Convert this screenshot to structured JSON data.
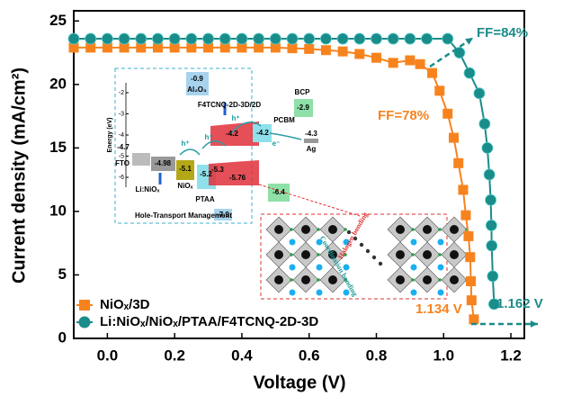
{
  "chart_data": {
    "type": "line",
    "x_label": "Voltage (V)",
    "y_label": "Current density (mA/cm²)",
    "xlim": [
      -0.1,
      1.24
    ],
    "ylim": [
      0,
      25.8
    ],
    "xticks": [
      {
        "value": 0,
        "label": "0.0"
      },
      0.2,
      0.4,
      0.6,
      0.8,
      {
        "value": 1,
        "label": "1.0"
      },
      1.2
    ],
    "yticks": [
      0,
      5,
      10,
      15,
      20,
      25
    ],
    "legend": "lower left",
    "series": [
      {
        "name": "NiOₓ/3D",
        "color": "#f7831e",
        "marker": "square",
        "x": [
          -0.1,
          -0.05,
          0,
          0.05,
          0.1,
          0.15,
          0.2,
          0.25,
          0.3,
          0.35,
          0.4,
          0.45,
          0.5,
          0.55,
          0.6,
          0.65,
          0.7,
          0.75,
          0.8,
          0.85,
          0.9,
          0.93,
          0.966,
          0.988,
          1.012,
          1.03,
          1.044,
          1.058,
          1.066,
          1.074,
          1.079,
          1.081,
          1.083,
          1.09
        ],
        "values": [
          22.9,
          22.9,
          22.9,
          22.9,
          22.9,
          22.9,
          22.9,
          22.9,
          22.9,
          22.9,
          22.9,
          22.9,
          22.9,
          22.85,
          22.8,
          22.7,
          22.6,
          22.4,
          22.1,
          21.7,
          21.9,
          21.6,
          20.9,
          19.5,
          17.7,
          15.8,
          13.8,
          11.7,
          9.7,
          8.05,
          6.4,
          4.5,
          3.0,
          1.5
        ]
      },
      {
        "name": "Li:NiOₓ/NiOₓ/PTAA/F4TCNQ-2D-3D",
        "color": "#1a8c8a",
        "marker": "circle",
        "x": [
          -0.1,
          -0.05,
          0,
          0.05,
          0.1,
          0.15,
          0.2,
          0.25,
          0.3,
          0.35,
          0.4,
          0.45,
          0.5,
          0.55,
          0.6,
          0.65,
          0.7,
          0.75,
          0.8,
          0.85,
          0.9,
          0.95,
          1.012,
          1.047,
          1.077,
          1.106,
          1.122,
          1.13,
          1.136,
          1.14,
          1.142,
          1.143,
          1.146,
          1.15
        ],
        "values": [
          23.6,
          23.6,
          23.6,
          23.6,
          23.6,
          23.6,
          23.6,
          23.6,
          23.6,
          23.6,
          23.6,
          23.6,
          23.6,
          23.6,
          23.6,
          23.6,
          23.6,
          23.6,
          23.6,
          23.6,
          23.6,
          23.6,
          23.6,
          22.5,
          20.9,
          19.3,
          16.9,
          15.0,
          12.9,
          10.9,
          8.9,
          7.3,
          4.9,
          2.7
        ]
      }
    ],
    "annotations": [
      "FF=84%",
      "FF=78%",
      "1.134 V",
      "1.162 V"
    ],
    "inset_energy": {
      "axis_label": "Energy (eV)",
      "ticks": [
        -2,
        -3,
        -4,
        -5,
        -6
      ],
      "labels": [
        "-0.9",
        "Al₂O₃",
        "F4TCNQ-2D-3D/2D",
        "BCP",
        "-2.9",
        "PCBM",
        "-4.2",
        "-4.2",
        "-4.3",
        "Ag",
        "-4.7",
        "FTO",
        "-4.98",
        "Li:NiOₓ",
        "-5.1",
        "NiOₓ",
        "-5.2",
        "PTAA",
        "-7.9",
        "-5.3",
        "-5.76",
        "-6.4",
        "h⁺",
        "h⁺",
        "h⁺",
        "e⁻"
      ],
      "caption": "Hole-Transport Management"
    },
    "inset_structure": {
      "labels": [
        "Halogen bonding",
        "Coordination bonding"
      ]
    }
  }
}
